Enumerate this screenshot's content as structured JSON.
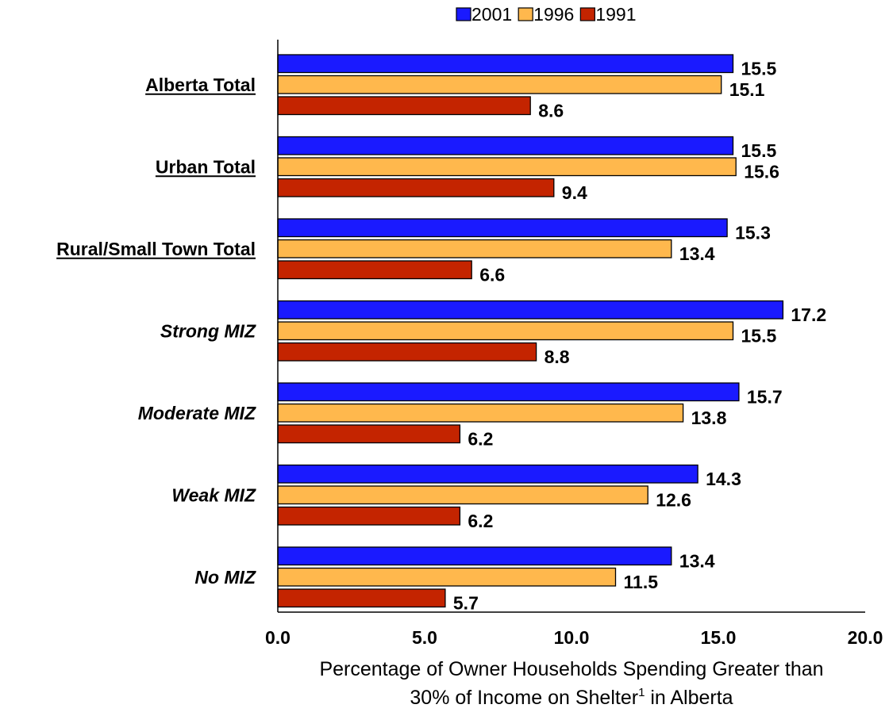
{
  "chart_data": {
    "type": "bar",
    "orientation": "horizontal",
    "categories": [
      {
        "label": "Alberta Total",
        "style": "underline"
      },
      {
        "label": "Urban Total",
        "style": "underline"
      },
      {
        "label": "Rural/Small Town Total",
        "style": "underline"
      },
      {
        "label": "Strong MIZ",
        "style": "italic"
      },
      {
        "label": "Moderate MIZ",
        "style": "italic"
      },
      {
        "label": "Weak MIZ",
        "style": "italic"
      },
      {
        "label": "No MIZ",
        "style": "italic"
      }
    ],
    "series": [
      {
        "name": "2001",
        "color": "#1a1aff",
        "values": [
          15.5,
          15.5,
          15.3,
          17.2,
          15.7,
          14.3,
          13.4
        ],
        "labels": [
          "15.5",
          "15.5",
          "15.3",
          "17.2",
          "15.7",
          "14.3",
          "13.4"
        ]
      },
      {
        "name": "1996",
        "color": "#ffb84d",
        "values": [
          15.1,
          15.6,
          13.4,
          15.5,
          13.8,
          12.6,
          11.5
        ],
        "labels": [
          "15.1",
          "15.6",
          "13.4",
          "15.5",
          "13.8",
          "12.6",
          "11.5"
        ]
      },
      {
        "name": "1991",
        "color": "#c42400",
        "values": [
          8.6,
          9.4,
          6.6,
          8.8,
          6.2,
          6.2,
          5.7
        ],
        "labels": [
          "8.6",
          "9.4",
          "6.6",
          "8.8",
          "6.2",
          "6.2",
          "5.7"
        ]
      }
    ],
    "xlim": [
      0,
      20
    ],
    "xticks": [
      "0.0",
      "5.0",
      "10.0",
      "15.0",
      "20.0"
    ],
    "xlabel_line1": "Percentage of Owner Households Spending Greater than",
    "xlabel_line2_pre": "30%  of Income on Shelter",
    "xlabel_sup": "1",
    "xlabel_line2_post": " in Alberta",
    "legend_position": "top",
    "grid": false
  }
}
